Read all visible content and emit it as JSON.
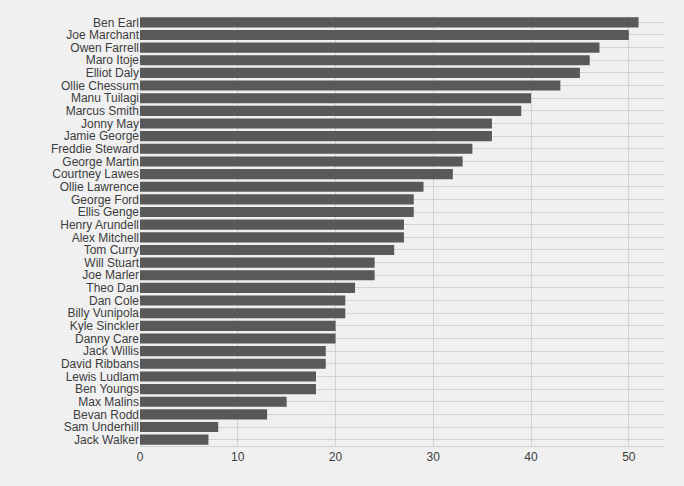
{
  "chart_data": {
    "type": "bar",
    "orientation": "horizontal",
    "categories": [
      "Ben Earl",
      "Joe Marchant",
      "Owen Farrell",
      "Maro Itoje",
      "Elliot Daly",
      "Ollie Chessum",
      "Manu Tuilagi",
      "Marcus Smith",
      "Jonny May",
      "Jamie George",
      "Freddie Steward",
      "George Martin",
      "Courtney Lawes",
      "Ollie Lawrence",
      "George Ford",
      "Ellis Genge",
      "Henry Arundell",
      "Alex Mitchell",
      "Tom Curry",
      "Will Stuart",
      "Joe Marler",
      "Theo Dan",
      "Dan Cole",
      "Billy Vunipola",
      "Kyle Sinckler",
      "Danny Care",
      "Jack Willis",
      "David Ribbans",
      "Lewis Ludlam",
      "Ben Youngs",
      "Max Malins",
      "Bevan Rodd",
      "Sam Underhill",
      "Jack Walker"
    ],
    "values": [
      51,
      50,
      47,
      46,
      45,
      43,
      40,
      39,
      36,
      36,
      34,
      33,
      32,
      29,
      28,
      28,
      27,
      27,
      26,
      24,
      24,
      22,
      21,
      21,
      20,
      20,
      19,
      19,
      18,
      18,
      15,
      13,
      8,
      7
    ],
    "color": "#595959",
    "xlim": [
      0,
      53.6
    ],
    "xticks": [
      0,
      10,
      20,
      30,
      40,
      50
    ],
    "grid": true
  }
}
